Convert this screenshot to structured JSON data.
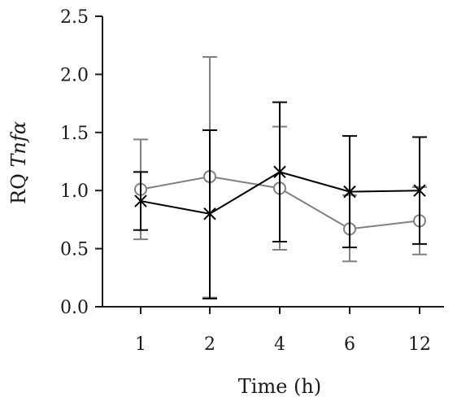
{
  "chart_data": {
    "type": "line",
    "title": "",
    "xlabel": "Time (h)",
    "ylabel": {
      "prefix": "RQ ",
      "gene": "Tnf",
      "suffix": "α"
    },
    "ylim": [
      0,
      2.5
    ],
    "yticks": [
      "0.0",
      "0.5",
      "1.0",
      "1.5",
      "2.0",
      "2.5"
    ],
    "categories": [
      "1",
      "2",
      "4",
      "6",
      "12"
    ],
    "grid": false,
    "legend": "none",
    "series": [
      {
        "marker": "circle",
        "color": "#808080",
        "values": [
          1.01,
          1.12,
          1.02,
          0.67,
          0.74
        ],
        "error_low": [
          0.58,
          0.08,
          0.49,
          0.39,
          0.45
        ],
        "error_high": [
          1.44,
          2.15,
          1.55,
          0.96,
          1.03
        ]
      },
      {
        "marker": "cross",
        "color": "#000000",
        "values": [
          0.91,
          0.8,
          1.16,
          0.99,
          1.0
        ],
        "error_low": [
          0.66,
          0.07,
          0.56,
          0.51,
          0.54
        ],
        "error_high": [
          1.16,
          1.52,
          1.76,
          1.47,
          1.46
        ]
      }
    ]
  }
}
